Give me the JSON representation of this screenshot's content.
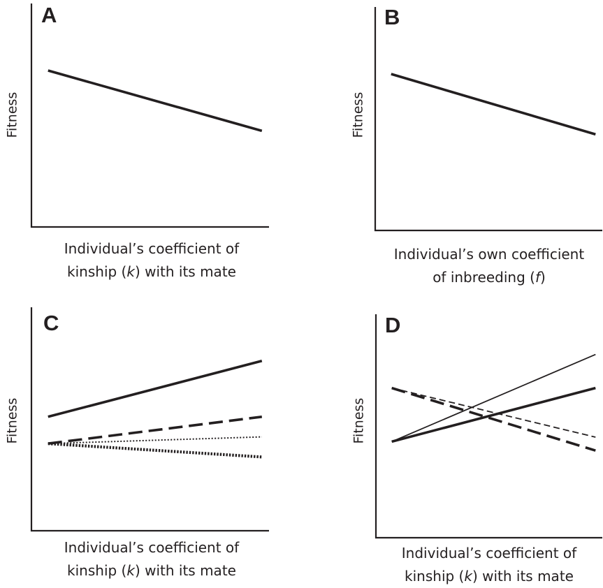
{
  "colors": {
    "ink": "#231f20",
    "background": "#ffffff"
  },
  "panels": [
    {
      "letter": "A",
      "ylabel": "Fitness",
      "xlabel_line1": "Individual’s coefficient of",
      "xlabel_line2_pre": "kinship (",
      "xlabel_var": "k",
      "xlabel_line2_post": ") with its mate"
    },
    {
      "letter": "B",
      "ylabel": "Fitness",
      "xlabel_line1": "Individual’s own coefficient",
      "xlabel_line2_pre": "of inbreeding (",
      "xlabel_var": "f",
      "xlabel_line2_post": ")"
    },
    {
      "letter": "C",
      "ylabel": "Fitness",
      "xlabel_line1": "Individual’s coefficient of",
      "xlabel_line2_pre": "kinship (",
      "xlabel_var": "k",
      "xlabel_line2_post": ") with its mate"
    },
    {
      "letter": "D",
      "ylabel": "Fitness",
      "xlabel_line1": "Individual’s coefficient of",
      "xlabel_line2_pre": "kinship (",
      "xlabel_var": "k",
      "xlabel_line2_post": ") with its mate"
    }
  ],
  "chart_data": [
    {
      "type": "line",
      "panel": "A",
      "x": [
        0.07,
        0.97
      ],
      "xlim": [
        0,
        1
      ],
      "ylim": [
        0,
        1
      ],
      "ticks": false,
      "grid": false,
      "series": [
        {
          "style": "solid-thick",
          "y": [
            0.7,
            0.43
          ]
        }
      ]
    },
    {
      "type": "line",
      "panel": "B",
      "x": [
        0.07,
        0.97
      ],
      "xlim": [
        0,
        1
      ],
      "ylim": [
        0,
        1
      ],
      "ticks": false,
      "grid": false,
      "series": [
        {
          "style": "solid-thick",
          "y": [
            0.7,
            0.43
          ]
        }
      ]
    },
    {
      "type": "line",
      "panel": "C",
      "x": [
        0.07,
        0.97
      ],
      "xlim": [
        0,
        1
      ],
      "ylim": [
        0,
        1
      ],
      "ticks": false,
      "grid": false,
      "series": [
        {
          "style": "solid-thick",
          "y": [
            0.51,
            0.76
          ]
        },
        {
          "style": "dashed-thick",
          "y": [
            0.39,
            0.51
          ]
        },
        {
          "style": "dotted-thin",
          "y": [
            0.39,
            0.42
          ]
        },
        {
          "style": "dotted-thick",
          "y": [
            0.39,
            0.33
          ]
        }
      ]
    },
    {
      "type": "line",
      "panel": "D",
      "x": [
        0.07,
        0.97
      ],
      "xlim": [
        0,
        1
      ],
      "ylim": [
        0,
        1
      ],
      "ticks": false,
      "grid": false,
      "series": [
        {
          "style": "solid-thin",
          "y": [
            0.43,
            0.82
          ]
        },
        {
          "style": "solid-thick",
          "y": [
            0.43,
            0.67
          ]
        },
        {
          "style": "dashed-thin",
          "y": [
            0.67,
            0.45
          ]
        },
        {
          "style": "dashed-thick",
          "y": [
            0.67,
            0.39
          ]
        }
      ]
    }
  ]
}
